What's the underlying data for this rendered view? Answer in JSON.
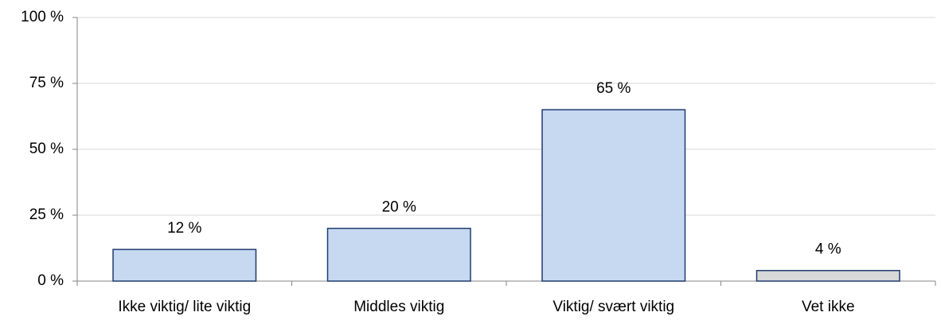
{
  "chart_data": {
    "type": "bar",
    "categories": [
      "Ikke viktig/ lite viktig",
      "Middles viktig",
      "Viktig/ svært viktig",
      "Vet ikke"
    ],
    "values": [
      12,
      20,
      65,
      4
    ],
    "value_labels": [
      "12 %",
      "20 %",
      "65 %",
      "4 %"
    ],
    "colors": [
      "#c6d9f1",
      "#c6d9f1",
      "#c6d9f1",
      "#d9d9d9"
    ],
    "ylim": [
      0,
      100
    ],
    "yticks": [
      {
        "value": 0,
        "label": "0 %"
      },
      {
        "value": 25,
        "label": "25 %"
      },
      {
        "value": 50,
        "label": "50 %"
      },
      {
        "value": 75,
        "label": "75 %"
      },
      {
        "value": 100,
        "label": "100 %"
      }
    ],
    "grid": true
  }
}
